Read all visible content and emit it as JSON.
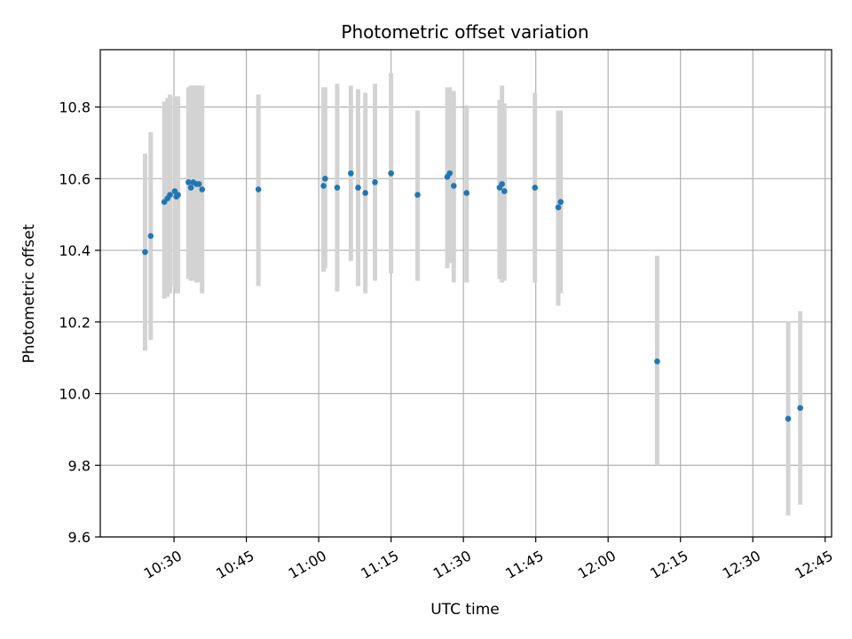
{
  "chart_data": {
    "type": "scatter",
    "title": "Photometric offset variation",
    "xlabel": "UTC time",
    "ylabel": "Photometric offset",
    "x_unit": "UTC time (HH:MM)",
    "xlim": [
      "10:14:43",
      "12:46:20"
    ],
    "ylim": [
      9.6,
      10.96
    ],
    "y_ticks": [
      9.6,
      9.8,
      10.0,
      10.2,
      10.4,
      10.6,
      10.8
    ],
    "y_tick_labels": [
      "9.6",
      "9.8",
      "10.0",
      "10.2",
      "10.4",
      "10.6",
      "10.8"
    ],
    "x_ticks": [
      "10:30",
      "10:45",
      "11:00",
      "11:15",
      "11:30",
      "11:45",
      "12:00",
      "12:15",
      "12:30",
      "12:45"
    ],
    "x_tick_labels": [
      "10:30",
      "10:45",
      "11:00",
      "11:15",
      "11:30",
      "11:45",
      "12:00",
      "12:15",
      "12:30",
      "12:45"
    ],
    "grid": true,
    "colors": {
      "points": "#1f77b4",
      "errorbars": "#d3d3d3",
      "grid": "#b0b0b0"
    },
    "points": [
      {
        "x": "10:24:00",
        "y": 10.395,
        "err_low": 10.12,
        "err_high": 10.67
      },
      {
        "x": "10:25:10",
        "y": 10.44,
        "err_low": 10.15,
        "err_high": 10.73
      },
      {
        "x": "10:28:00",
        "y": 10.535,
        "err_low": 10.265,
        "err_high": 10.815
      },
      {
        "x": "10:28:40",
        "y": 10.545,
        "err_low": 10.27,
        "err_high": 10.825
      },
      {
        "x": "10:29:10",
        "y": 10.555,
        "err_low": 10.28,
        "err_high": 10.835
      },
      {
        "x": "10:30:10",
        "y": 10.565,
        "err_low": 10.3,
        "err_high": 10.83
      },
      {
        "x": "10:30:30",
        "y": 10.55,
        "err_low": 10.28,
        "err_high": 10.83
      },
      {
        "x": "10:30:50",
        "y": 10.555,
        "err_low": 10.28,
        "err_high": 10.83
      },
      {
        "x": "10:33:00",
        "y": 10.59,
        "err_low": 10.32,
        "err_high": 10.855
      },
      {
        "x": "10:33:30",
        "y": 10.575,
        "err_low": 10.315,
        "err_high": 10.86
      },
      {
        "x": "10:34:00",
        "y": 10.59,
        "err_low": 10.315,
        "err_high": 10.86
      },
      {
        "x": "10:34:40",
        "y": 10.585,
        "err_low": 10.31,
        "err_high": 10.86
      },
      {
        "x": "10:35:10",
        "y": 10.585,
        "err_low": 10.31,
        "err_high": 10.86
      },
      {
        "x": "10:35:50",
        "y": 10.57,
        "err_low": 10.28,
        "err_high": 10.86
      },
      {
        "x": "10:47:30",
        "y": 10.57,
        "err_low": 10.3,
        "err_high": 10.835
      },
      {
        "x": "11:01:00",
        "y": 10.58,
        "err_low": 10.34,
        "err_high": 10.855
      },
      {
        "x": "11:01:20",
        "y": 10.6,
        "err_low": 10.35,
        "err_high": 10.855
      },
      {
        "x": "11:03:50",
        "y": 10.575,
        "err_low": 10.285,
        "err_high": 10.865
      },
      {
        "x": "11:06:40",
        "y": 10.615,
        "err_low": 10.37,
        "err_high": 10.86
      },
      {
        "x": "11:08:10",
        "y": 10.575,
        "err_low": 10.3,
        "err_high": 10.85
      },
      {
        "x": "11:09:40",
        "y": 10.56,
        "err_low": 10.28,
        "err_high": 10.84
      },
      {
        "x": "11:11:40",
        "y": 10.59,
        "err_low": 10.315,
        "err_high": 10.865
      },
      {
        "x": "11:15:00",
        "y": 10.615,
        "err_low": 10.335,
        "err_high": 10.895
      },
      {
        "x": "11:20:30",
        "y": 10.555,
        "err_low": 10.315,
        "err_high": 10.79
      },
      {
        "x": "11:26:40",
        "y": 10.605,
        "err_low": 10.35,
        "err_high": 10.855
      },
      {
        "x": "11:27:10",
        "y": 10.615,
        "err_low": 10.365,
        "err_high": 10.855
      },
      {
        "x": "11:28:00",
        "y": 10.58,
        "err_low": 10.31,
        "err_high": 10.845
      },
      {
        "x": "11:30:40",
        "y": 10.56,
        "err_low": 10.31,
        "err_high": 10.805
      },
      {
        "x": "11:37:30",
        "y": 10.575,
        "err_low": 10.32,
        "err_high": 10.82
      },
      {
        "x": "11:38:00",
        "y": 10.585,
        "err_low": 10.31,
        "err_high": 10.86
      },
      {
        "x": "11:38:30",
        "y": 10.565,
        "err_low": 10.315,
        "err_high": 10.81
      },
      {
        "x": "11:44:50",
        "y": 10.575,
        "err_low": 10.31,
        "err_high": 10.84
      },
      {
        "x": "11:49:40",
        "y": 10.52,
        "err_low": 10.245,
        "err_high": 10.79
      },
      {
        "x": "11:50:10",
        "y": 10.535,
        "err_low": 10.28,
        "err_high": 10.79
      },
      {
        "x": "12:10:10",
        "y": 10.09,
        "err_low": 9.8,
        "err_high": 10.385
      },
      {
        "x": "12:37:20",
        "y": 9.93,
        "err_low": 9.66,
        "err_high": 10.2
      },
      {
        "x": "12:39:50",
        "y": 9.96,
        "err_low": 9.69,
        "err_high": 10.23
      }
    ]
  }
}
